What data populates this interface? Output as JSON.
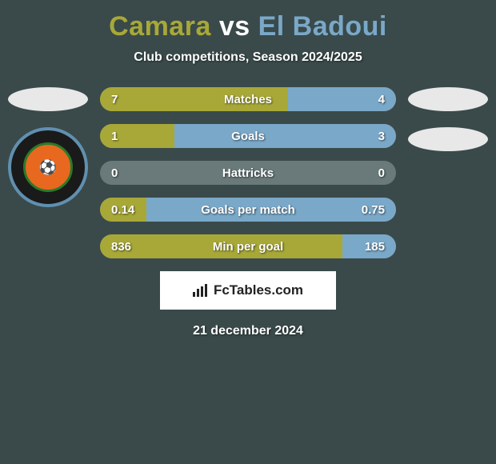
{
  "title": {
    "player1": "Camara",
    "vs": "vs",
    "player2": "El Badoui",
    "color1": "#a8a838",
    "color_vs": "#ffffff",
    "color2": "#7aa8c8"
  },
  "subtitle": "Club competitions, Season 2024/2025",
  "date": "21 december 2024",
  "watermark": "FcTables.com",
  "colors": {
    "background": "#3a4a4a",
    "bar_track": "#6a7a7a",
    "bar_left": "#a8a838",
    "bar_right": "#7aa8c8",
    "ellipse_left": "#e8e8e8",
    "ellipse_right": "#e8e8e8",
    "logo_border": "#6090b0",
    "logo_bg": "#1a1a1a"
  },
  "stats": [
    {
      "label": "Matches",
      "left_val": "7",
      "right_val": "4",
      "left_pct": 63.6,
      "right_pct": 36.4
    },
    {
      "label": "Goals",
      "left_val": "1",
      "right_val": "3",
      "left_pct": 25.0,
      "right_pct": 75.0
    },
    {
      "label": "Hattricks",
      "left_val": "0",
      "right_val": "0",
      "left_pct": 0,
      "right_pct": 0
    },
    {
      "label": "Goals per match",
      "left_val": "0.14",
      "right_val": "0.75",
      "left_pct": 15.7,
      "right_pct": 84.3
    },
    {
      "label": "Min per goal",
      "left_val": "836",
      "right_val": "185",
      "left_pct": 81.9,
      "right_pct": 18.1
    }
  ]
}
